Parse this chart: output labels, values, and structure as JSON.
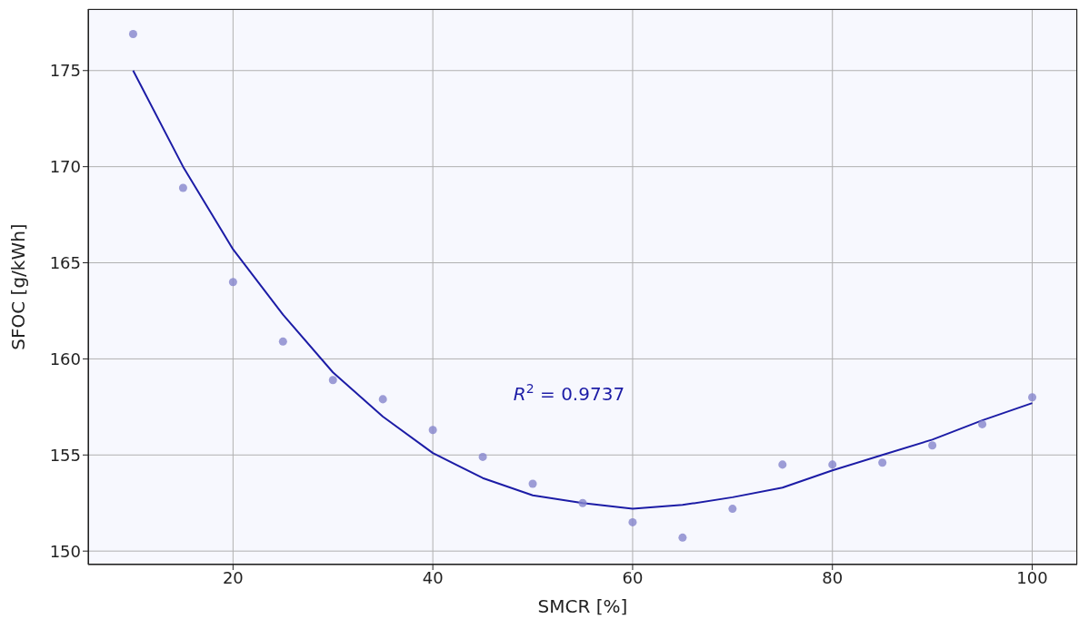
{
  "chart_data": {
    "type": "scatter",
    "xlabel": "SMCR [%]",
    "ylabel": "SFOC [g/kWh]",
    "x": [
      10,
      15,
      20,
      25,
      30,
      35,
      40,
      45,
      50,
      55,
      60,
      65,
      70,
      75,
      80,
      85,
      90,
      95,
      100
    ],
    "series": [
      {
        "color": "#8585cc",
        "marker": "circle",
        "values": [
          176.9,
          168.9,
          164.0,
          160.9,
          158.9,
          157.9,
          156.3,
          154.9,
          153.5,
          152.5,
          151.5,
          150.7,
          152.2,
          154.5,
          154.5,
          154.6,
          155.5,
          156.6,
          158.0
        ]
      },
      {
        "type": "line",
        "color": "#1c1ca6",
        "values": [
          175.0,
          170.0,
          165.7,
          162.3,
          159.3,
          157.0,
          155.1,
          153.8,
          152.9,
          152.5,
          152.2,
          152.4,
          152.8,
          153.3,
          154.2,
          155.0,
          155.8,
          156.8,
          157.7
        ]
      }
    ],
    "annotations": [
      "R$^{2}$ = 0.9737"
    ],
    "xlim": [
      5.5,
      104.5
    ],
    "xticks": [
      20,
      40,
      60,
      80,
      100
    ],
    "ylim": [
      149.3,
      178.2
    ],
    "yticks": [
      150,
      155,
      160,
      165,
      170,
      175
    ],
    "grid": true,
    "legend": false
  }
}
